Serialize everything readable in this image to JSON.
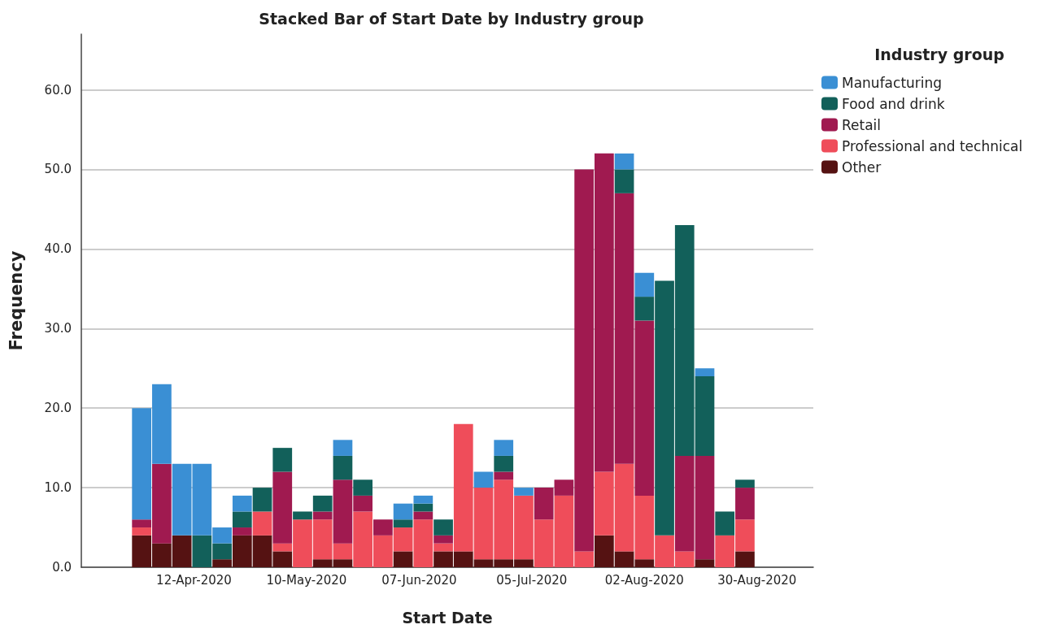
{
  "chart_data": {
    "type": "bar",
    "title": "Stacked Bar of Start Date by Industry group",
    "xlabel": "Start Date",
    "ylabel": "Frequency",
    "legend_title": "Industry group",
    "stacked": true,
    "grid": "y",
    "legend": "top right",
    "x": [
      "2020-03-30",
      "2020-04-04",
      "2020-04-09",
      "2020-04-14",
      "2020-04-19",
      "2020-04-24",
      "2020-04-29",
      "2020-05-04",
      "2020-05-09",
      "2020-05-14",
      "2020-05-19",
      "2020-05-24",
      "2020-05-29",
      "2020-06-03",
      "2020-06-08",
      "2020-06-13",
      "2020-06-18",
      "2020-06-23",
      "2020-06-28",
      "2020-07-03",
      "2020-07-08",
      "2020-07-13",
      "2020-07-18",
      "2020-07-23",
      "2020-07-28",
      "2020-08-02",
      "2020-08-07",
      "2020-08-12",
      "2020-08-17",
      "2020-08-22",
      "2020-08-27"
    ],
    "xlim": [
      "2020-03-15",
      "2020-09-13"
    ],
    "xticks": [
      {
        "value": "2020-04-12",
        "label": "12-Apr-2020"
      },
      {
        "value": "2020-05-10",
        "label": "10-May-2020"
      },
      {
        "value": "2020-06-07",
        "label": "07-Jun-2020"
      },
      {
        "value": "2020-07-05",
        "label": "05-Jul-2020"
      },
      {
        "value": "2020-08-02",
        "label": "02-Aug-2020"
      },
      {
        "value": "2020-08-30",
        "label": "30-Aug-2020"
      }
    ],
    "ylim": [
      0,
      67
    ],
    "yticks": [
      {
        "value": 0,
        "label": "0.0"
      },
      {
        "value": 10,
        "label": "10.0"
      },
      {
        "value": 20,
        "label": "20.0"
      },
      {
        "value": 30,
        "label": "30.0"
      },
      {
        "value": 40,
        "label": "40.0"
      },
      {
        "value": 50,
        "label": "50.0"
      },
      {
        "value": 60,
        "label": "60.0"
      }
    ],
    "series": [
      {
        "name": "Other",
        "color": "#551212",
        "values": [
          4,
          3,
          4,
          0,
          1,
          4,
          4,
          2,
          0,
          1,
          1,
          0,
          0,
          2,
          0,
          2,
          2,
          1,
          1,
          1,
          0,
          0,
          0,
          4,
          2,
          1,
          0,
          0,
          1,
          0,
          2
        ]
      },
      {
        "name": "Professional and technical",
        "color": "#ef4d5a",
        "values": [
          1,
          0,
          0,
          0,
          0,
          0,
          3,
          1,
          6,
          5,
          2,
          7,
          4,
          3,
          6,
          1,
          16,
          9,
          10,
          8,
          6,
          9,
          2,
          8,
          11,
          8,
          4,
          2,
          0,
          4,
          4
        ]
      },
      {
        "name": "Retail",
        "color": "#a01a50",
        "values": [
          1,
          10,
          0,
          0,
          0,
          1,
          0,
          9,
          0,
          1,
          8,
          2,
          2,
          0,
          1,
          1,
          0,
          0,
          1,
          0,
          4,
          2,
          48,
          40,
          34,
          22,
          0,
          12,
          13,
          0,
          4
        ]
      },
      {
        "name": "Food and drink",
        "color": "#12605a",
        "values": [
          0,
          0,
          0,
          4,
          2,
          2,
          3,
          3,
          1,
          2,
          3,
          2,
          0,
          1,
          1,
          2,
          0,
          0,
          2,
          0,
          0,
          0,
          0,
          0,
          3,
          3,
          32,
          29,
          10,
          3,
          1
        ]
      },
      {
        "name": "Manufacturing",
        "color": "#3a8fd4",
        "values": [
          14,
          10,
          9,
          9,
          2,
          2,
          0,
          0,
          0,
          0,
          2,
          0,
          0,
          2,
          1,
          0,
          0,
          2,
          2,
          1,
          0,
          0,
          0,
          0,
          2,
          3,
          0,
          0,
          1,
          0,
          0
        ]
      }
    ]
  }
}
